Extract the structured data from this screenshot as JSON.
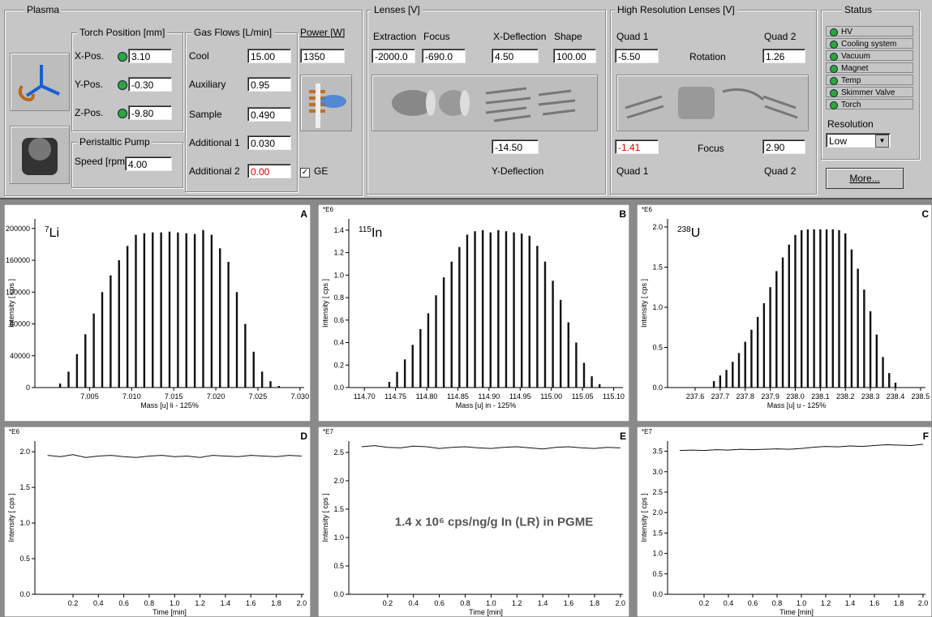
{
  "plasma": {
    "title": "Plasma",
    "torch_position": {
      "title": "Torch Position [mm]",
      "rows": [
        {
          "label": "X-Pos.",
          "value": "3.10"
        },
        {
          "label": "Y-Pos.",
          "value": "-0.30"
        },
        {
          "label": "Z-Pos.",
          "value": "-9.80"
        }
      ]
    },
    "pump": {
      "title": "Peristaltic Pump",
      "label": "Speed [rpm]",
      "value": "4.00"
    },
    "gas_flows": {
      "title": "Gas Flows [L/min]",
      "rows": [
        {
          "label": "Cool",
          "value": "15.00"
        },
        {
          "label": "Auxiliary",
          "value": "0.95"
        },
        {
          "label": "Sample",
          "value": "0.490"
        },
        {
          "label": "Additional 1",
          "value": "0.030"
        },
        {
          "label": "Additional 2",
          "value": "0.00"
        }
      ]
    },
    "power": {
      "title": "Power [W]",
      "value": "1350"
    },
    "ge": "GE"
  },
  "lenses": {
    "title": "Lenses [V]",
    "fields": [
      {
        "label": "Extraction",
        "value": "-2000.0"
      },
      {
        "label": "Focus",
        "value": "-690.0"
      },
      {
        "label": "X-Deflection",
        "value": "4.50"
      },
      {
        "label": "Shape",
        "value": "100.00"
      }
    ],
    "y_deflection": {
      "label": "Y-Deflection",
      "value": "-14.50"
    }
  },
  "hr_lenses": {
    "title": "High Resolution Lenses [V]",
    "top": {
      "quad1_label": "Quad 1",
      "quad1": "-5.50",
      "rotation_label": "Rotation",
      "quad2_label": "Quad 2",
      "quad2": "1.26"
    },
    "bottom": {
      "quad1": "-1.41",
      "focus_label": "Focus",
      "quad2": "2.90",
      "quad1_label": "Quad 1",
      "quad2_label": "Quad 2"
    }
  },
  "status": {
    "title": "Status",
    "items": [
      "HV",
      "Cooling system",
      "Vacuum",
      "Magnet",
      "Temp",
      "Skimmer Valve",
      "Torch"
    ],
    "resolution_label": "Resolution",
    "resolution": "Low",
    "more": "More..."
  },
  "plots": [
    {
      "type": "bar",
      "panel": "A",
      "mass": "7",
      "element": "Li",
      "xlabel": "Mass [u]  li - 125%",
      "ylabel": "Intensity [ cps ]",
      "x": [
        7.0015,
        7.0025,
        7.0035,
        7.0045,
        7.0055,
        7.0065,
        7.0075,
        7.0085,
        7.0095,
        7.0105,
        7.0115,
        7.0125,
        7.0135,
        7.0145,
        7.0155,
        7.0165,
        7.0175,
        7.0185,
        7.0195,
        7.0205,
        7.0215,
        7.0225,
        7.0235,
        7.0245,
        7.0255,
        7.0265,
        7.0275
      ],
      "values": [
        5000,
        20000,
        42000,
        67000,
        93000,
        120000,
        141000,
        160000,
        178000,
        192000,
        194000,
        195000,
        195000,
        196000,
        195000,
        194000,
        193000,
        198000,
        192000,
        175000,
        158000,
        120000,
        80000,
        45000,
        20000,
        8000,
        2000
      ],
      "xlim": [
        6.9985,
        7.0305
      ],
      "ylim": [
        0,
        212000
      ],
      "xticks": [
        7.005,
        {
          "value": 7.01,
          "label": "7.010"
        },
        7.015,
        {
          "value": 7.02,
          "label": "7.020"
        },
        7.025,
        {
          "value": 7.03,
          "label": "7.030"
        }
      ],
      "yticks": [
        0,
        40000,
        80000,
        120000,
        160000,
        200000
      ]
    },
    {
      "type": "bar",
      "panel": "B",
      "multiplier": "*E6",
      "mass": "115",
      "element": "In",
      "xlabel": "Mass [u]  in - 125%",
      "ylabel": "Intensity [ cps ]",
      "x": [
        114.74,
        114.7525,
        114.765,
        114.7775,
        114.79,
        114.8025,
        114.815,
        114.8275,
        114.84,
        114.8525,
        114.865,
        114.8775,
        114.89,
        114.9025,
        114.915,
        114.9275,
        114.94,
        114.9525,
        114.965,
        114.9775,
        114.99,
        115.0025,
        115.015,
        115.0275,
        115.04,
        115.0525,
        115.065,
        115.0775
      ],
      "values": [
        0.05,
        0.14,
        0.25,
        0.38,
        0.52,
        0.66,
        0.82,
        0.98,
        1.12,
        1.25,
        1.36,
        1.39,
        1.4,
        1.38,
        1.4,
        1.39,
        1.38,
        1.37,
        1.35,
        1.26,
        1.12,
        0.95,
        0.78,
        0.58,
        0.4,
        0.22,
        0.1,
        0.03
      ],
      "xlim": [
        114.675,
        115.115
      ],
      "ylim": [
        0,
        1.5
      ],
      "xticks": [
        {
          "value": 114.7,
          "label": "114.70"
        },
        114.75,
        {
          "value": 114.8,
          "label": "114.80"
        },
        114.85,
        {
          "value": 114.9,
          "label": "114.90"
        },
        114.95,
        {
          "value": 115,
          "label": "115.00"
        },
        115.05,
        {
          "value": 115.1,
          "label": "115.10"
        }
      ],
      "yticks": [
        {
          "value": 0,
          "label": "0.0"
        },
        0.2,
        0.4,
        0.6,
        0.8,
        {
          "value": 1,
          "label": "1.0"
        },
        1.2,
        1.4
      ]
    },
    {
      "type": "bar",
      "panel": "C",
      "multiplier": "*E6",
      "mass": "238",
      "element": "U",
      "xlabel": "Mass [u]  u - 125%",
      "ylabel": "Intensity [ cps ]",
      "x": [
        237.675,
        237.7,
        237.725,
        237.75,
        237.775,
        237.8,
        237.825,
        237.85,
        237.875,
        237.9,
        237.925,
        237.95,
        237.975,
        238.0,
        238.025,
        238.05,
        238.075,
        238.1,
        238.125,
        238.15,
        238.175,
        238.2,
        238.225,
        238.25,
        238.275,
        238.3,
        238.325,
        238.35,
        238.375,
        238.4
      ],
      "values": [
        0.08,
        0.15,
        0.22,
        0.32,
        0.43,
        0.57,
        0.72,
        0.88,
        1.05,
        1.25,
        1.45,
        1.62,
        1.78,
        1.9,
        1.96,
        1.97,
        1.97,
        1.97,
        1.97,
        1.97,
        1.96,
        1.92,
        1.72,
        1.48,
        1.22,
        0.95,
        0.66,
        0.38,
        0.18,
        0.06
      ],
      "xlim": [
        237.49,
        238.52
      ],
      "ylim": [
        0,
        2.1
      ],
      "xticks": [
        237.6,
        237.7,
        237.8,
        237.9,
        {
          "value": 238,
          "label": "238.0"
        },
        238.1,
        238.2,
        238.3,
        238.4,
        238.5
      ],
      "yticks": [
        {
          "value": 0,
          "label": "0.0"
        },
        0.5,
        {
          "value": 1,
          "label": "1.0"
        },
        1.5,
        {
          "value": 2,
          "label": "2.0"
        }
      ]
    },
    {
      "type": "line",
      "panel": "D",
      "multiplier": "*E6",
      "xlabel": "Time [min]",
      "ylabel": "Intensity [ cps ]",
      "x": [
        0,
        0.1,
        0.2,
        0.3,
        0.4,
        0.5,
        0.6,
        0.7,
        0.8,
        0.9,
        1,
        1.1,
        1.2,
        1.3,
        1.4,
        1.5,
        1.6,
        1.7,
        1.8,
        1.9,
        2
      ],
      "values": [
        1.95,
        1.93,
        1.96,
        1.92,
        1.94,
        1.95,
        1.93,
        1.92,
        1.94,
        1.95,
        1.93,
        1.94,
        1.92,
        1.95,
        1.94,
        1.93,
        1.95,
        1.94,
        1.93,
        1.95,
        1.94
      ],
      "xlim": [
        -0.1,
        2.02
      ],
      "ylim": [
        0,
        2.15
      ],
      "xticks": [
        0.2,
        0.4,
        0.6,
        0.8,
        {
          "value": 1,
          "label": "1.0"
        },
        1.2,
        1.4,
        1.6,
        1.8,
        {
          "value": 2,
          "label": "2.0"
        }
      ],
      "yticks": [
        {
          "value": 0,
          "label": "0.0"
        },
        0.5,
        {
          "value": 1,
          "label": "1.0"
        },
        1.5,
        {
          "value": 2,
          "label": "2.0"
        }
      ]
    },
    {
      "type": "line",
      "panel": "E",
      "multiplier": "*E7",
      "xlabel": "Time [min]",
      "ylabel": "Intensity [ cps ]",
      "annotation": "1.4 x 10⁶ cps/ng/g In (LR) in PGME",
      "x": [
        0,
        0.1,
        0.2,
        0.3,
        0.4,
        0.5,
        0.6,
        0.7,
        0.8,
        0.9,
        1,
        1.1,
        1.2,
        1.3,
        1.4,
        1.5,
        1.6,
        1.7,
        1.8,
        1.9,
        2
      ],
      "values": [
        2.6,
        2.62,
        2.59,
        2.58,
        2.61,
        2.6,
        2.57,
        2.59,
        2.6,
        2.58,
        2.57,
        2.59,
        2.6,
        2.58,
        2.56,
        2.59,
        2.6,
        2.58,
        2.57,
        2.59,
        2.58
      ],
      "xlim": [
        -0.1,
        2.02
      ],
      "ylim": [
        0,
        2.7
      ],
      "xticks": [
        0.2,
        0.4,
        0.6,
        0.8,
        {
          "value": 1,
          "label": "1.0"
        },
        1.2,
        1.4,
        1.6,
        1.8,
        {
          "value": 2,
          "label": "2.0"
        }
      ],
      "yticks": [
        {
          "value": 0,
          "label": "0.0"
        },
        0.5,
        {
          "value": 1,
          "label": "1.0"
        },
        1.5,
        {
          "value": 2,
          "label": "2.0"
        },
        2.5
      ]
    },
    {
      "type": "line",
      "panel": "F",
      "multiplier": "*E7",
      "xlabel": "Time [min]",
      "ylabel": "Intensity [ cps ]",
      "x": [
        0,
        0.1,
        0.2,
        0.3,
        0.4,
        0.5,
        0.6,
        0.7,
        0.8,
        0.9,
        1,
        1.1,
        1.2,
        1.3,
        1.4,
        1.5,
        1.6,
        1.7,
        1.8,
        1.9,
        2
      ],
      "values": [
        3.52,
        3.53,
        3.52,
        3.54,
        3.53,
        3.55,
        3.54,
        3.55,
        3.56,
        3.55,
        3.57,
        3.6,
        3.62,
        3.61,
        3.63,
        3.62,
        3.64,
        3.66,
        3.65,
        3.64,
        3.67
      ],
      "xlim": [
        -0.1,
        2.02
      ],
      "ylim": [
        0,
        3.75
      ],
      "xticks": [
        0.2,
        0.4,
        0.6,
        0.8,
        {
          "value": 1,
          "label": "1.0"
        },
        1.2,
        1.4,
        1.6,
        1.8,
        {
          "value": 2,
          "label": "2.0"
        }
      ],
      "yticks": [
        {
          "value": 0,
          "label": "0.0"
        },
        0.5,
        {
          "value": 1,
          "label": "1.0"
        },
        1.5,
        {
          "value": 2,
          "label": "2.0"
        },
        2.5,
        {
          "value": 3,
          "label": "3.0"
        },
        3.5
      ]
    }
  ]
}
